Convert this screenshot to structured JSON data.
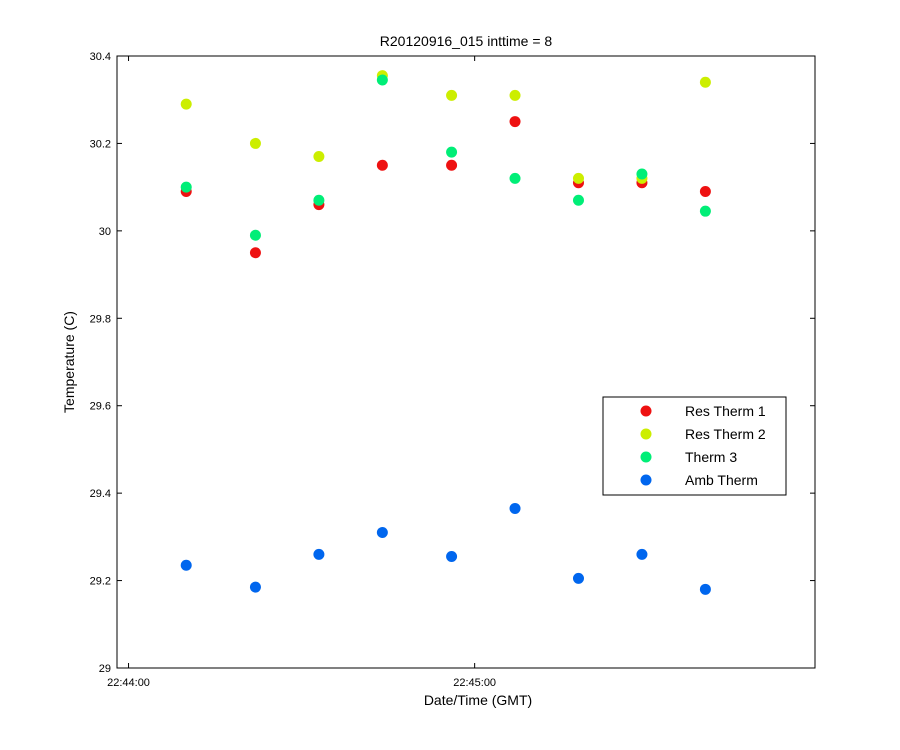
{
  "chart_data": {
    "type": "scatter",
    "title": "R20120916_015 inttime = 8",
    "xlabel": "Date/Time (GMT)",
    "ylabel": "Temperature (C)",
    "x_unit": "time",
    "xlim": [
      "22:43:58",
      "22:45:59"
    ],
    "ylim": [
      29,
      30.4
    ],
    "x_ticks": [
      "22:44:00",
      "22:45:00"
    ],
    "y_ticks": [
      "29",
      "29.2",
      "29.4",
      "29.6",
      "29.8",
      "30",
      "30.2",
      "30.4"
    ],
    "x": [
      "22:44:10",
      "22:44:22",
      "22:44:33",
      "22:44:44",
      "22:44:56",
      "22:45:07",
      "22:45:18",
      "22:45:29",
      "22:45:40"
    ],
    "series": [
      {
        "name": "Res Therm 1",
        "color": "#ee1111",
        "values": [
          30.09,
          29.95,
          30.06,
          30.15,
          30.15,
          30.25,
          30.11,
          30.11,
          30.09
        ]
      },
      {
        "name": "Res Therm 2",
        "color": "#ccee00",
        "values": [
          30.29,
          30.2,
          30.17,
          30.355,
          30.31,
          30.31,
          30.12,
          30.12,
          30.34
        ]
      },
      {
        "name": "Therm 3",
        "color": "#00ee77",
        "values": [
          30.1,
          29.99,
          30.07,
          30.345,
          30.18,
          30.12,
          30.07,
          30.13,
          30.045
        ]
      },
      {
        "name": "Amb Therm",
        "color": "#0066ee",
        "values": [
          29.235,
          29.185,
          29.26,
          29.31,
          29.255,
          29.365,
          29.205,
          29.26,
          29.18
        ]
      }
    ],
    "legend_position": "right",
    "grid": false
  }
}
